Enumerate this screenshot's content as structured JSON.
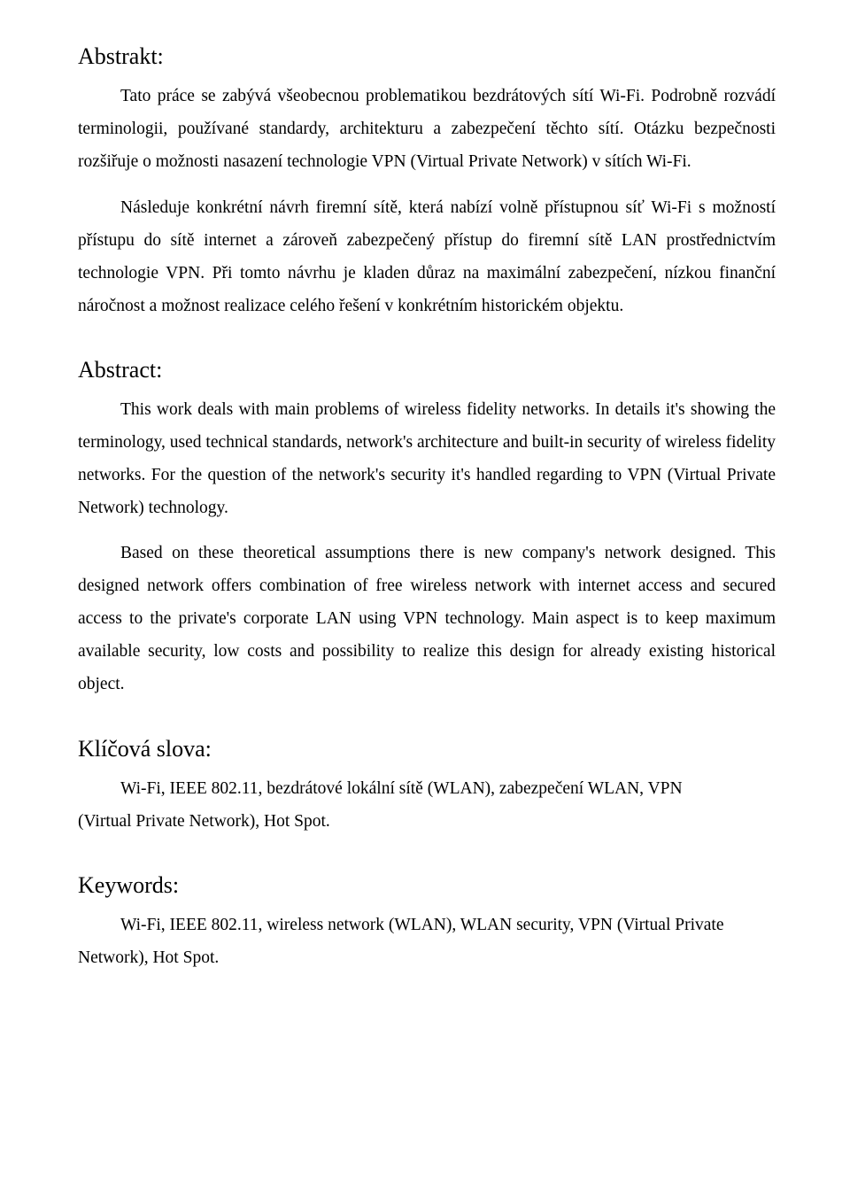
{
  "sections": [
    {
      "heading": "Abstrakt:",
      "paragraphs": [
        "Tato práce se zabývá všeobecnou problematikou bezdrátových sítí Wi-Fi. Podrobně rozvádí terminologii, používané standardy, architekturu a zabezpečení těchto sítí. Otázku bezpečnosti rozšiřuje o možnosti nasazení technologie VPN (Virtual Private Network) v sítích Wi-Fi.",
        "Následuje konkrétní návrh firemní sítě, která nabízí volně přístupnou síť Wi-Fi s možností přístupu do sítě internet a zároveň zabezpečený přístup do firemní sítě LAN prostřednictvím technologie VPN. Při tomto návrhu je kladen důraz na maximální zabezpečení, nízkou finanční náročnost a možnost realizace celého řešení v konkrétním historickém objektu."
      ]
    },
    {
      "heading": "Abstract:",
      "paragraphs": [
        "This work deals with main problems of wireless fidelity networks.  In details it's showing the terminology, used technical standards, network's architecture and built-in security of wireless fidelity networks.  For the question of the network's security it's handled regarding to VPN (Virtual Private Network) technology.",
        "Based on these theoretical assumptions there is new company's network designed. This designed network offers combination of free wireless network with internet access and secured access to the private's corporate LAN using VPN technology. Main aspect is to keep maximum available security, low costs and possibility to realize this design for already existing historical object."
      ]
    },
    {
      "heading": "Klíčová slova:",
      "kw_line1": "Wi-Fi, IEEE 802.11, bezdrátové lokální sítě (WLAN), zabezpečení WLAN, VPN",
      "kw_line2": "(Virtual Private Network), Hot Spot."
    },
    {
      "heading": "Keywords:",
      "kw_line1": "Wi-Fi, IEEE 802.11, wireless network (WLAN), WLAN security, VPN (Virtual Private",
      "kw_line2": "Network), Hot Spot."
    }
  ]
}
